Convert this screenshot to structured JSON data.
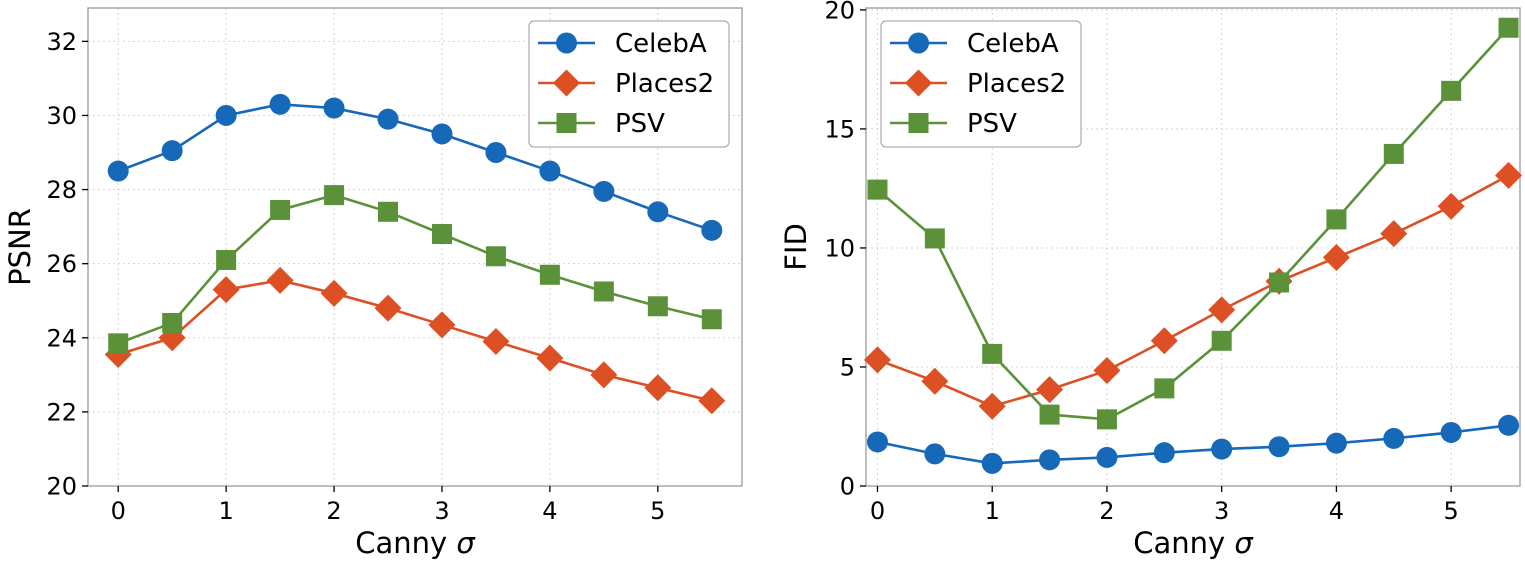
{
  "colors": {
    "CelebA": "#1668b8",
    "Places2": "#dc5023",
    "PSV": "#5b9138"
  },
  "chart_data": [
    {
      "type": "line",
      "title": "",
      "xlabel": "Canny σ",
      "ylabel": "PSNR",
      "x": [
        0,
        0.5,
        1,
        1.5,
        2,
        2.5,
        3,
        3.5,
        4,
        4.5,
        5,
        5.5
      ],
      "xlim": [
        -0.28,
        5.78
      ],
      "ylim": [
        20,
        32.9
      ],
      "xticks": [
        0,
        1,
        2,
        3,
        4,
        5
      ],
      "xtick_labels": [
        "0",
        "1",
        "2",
        "3",
        "4",
        "5"
      ],
      "yticks": [
        20,
        22,
        24,
        26,
        28,
        30,
        32
      ],
      "ytick_labels": [
        "20",
        "22",
        "24",
        "26",
        "28",
        "30",
        "32"
      ],
      "grid": true,
      "legend_position": "top-right",
      "series": [
        {
          "name": "CelebA",
          "marker": "circle",
          "values": [
            28.5,
            29.05,
            30.0,
            30.3,
            30.2,
            29.9,
            29.5,
            29.0,
            28.5,
            27.95,
            27.4,
            26.9
          ]
        },
        {
          "name": "Places2",
          "marker": "diamond",
          "values": [
            23.55,
            24.0,
            25.3,
            25.55,
            25.2,
            24.8,
            24.35,
            23.9,
            23.45,
            23.0,
            22.65,
            22.3
          ]
        },
        {
          "name": "PSV",
          "marker": "square",
          "values": [
            23.85,
            24.4,
            26.1,
            27.45,
            27.85,
            27.4,
            26.8,
            26.2,
            25.7,
            25.25,
            24.85,
            24.5
          ]
        }
      ]
    },
    {
      "type": "line",
      "title": "",
      "xlabel": "Canny σ",
      "ylabel": "FID",
      "x": [
        0,
        0.5,
        1,
        1.5,
        2,
        2.5,
        3,
        3.5,
        4,
        4.5,
        5,
        5.5
      ],
      "xlim": [
        -0.1,
        5.6
      ],
      "ylim": [
        0,
        20.08
      ],
      "xticks": [
        0,
        1,
        2,
        3,
        4,
        5
      ],
      "xtick_labels": [
        "0",
        "1",
        "2",
        "3",
        "4",
        "5"
      ],
      "yticks": [
        0,
        5,
        10,
        15,
        20
      ],
      "ytick_labels": [
        "0",
        "5",
        "10",
        "15",
        "20"
      ],
      "grid": true,
      "legend_position": "top-left",
      "series": [
        {
          "name": "CelebA",
          "marker": "circle",
          "values": [
            1.85,
            1.35,
            0.95,
            1.1,
            1.2,
            1.4,
            1.55,
            1.65,
            1.8,
            2.0,
            2.25,
            2.55
          ]
        },
        {
          "name": "Places2",
          "marker": "diamond",
          "values": [
            5.3,
            4.4,
            3.35,
            4.05,
            4.85,
            6.1,
            7.4,
            8.6,
            9.6,
            10.6,
            11.75,
            13.05
          ]
        },
        {
          "name": "PSV",
          "marker": "square",
          "values": [
            12.45,
            10.4,
            5.55,
            3.0,
            2.8,
            4.1,
            6.1,
            8.55,
            11.2,
            13.95,
            16.6,
            19.25
          ]
        }
      ]
    }
  ]
}
